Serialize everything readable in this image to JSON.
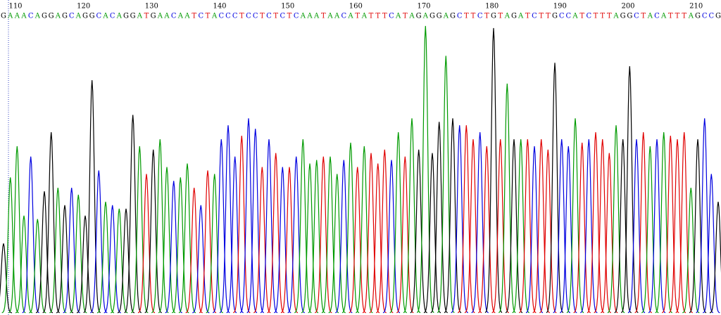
{
  "chart_data": {
    "type": "chromatogram",
    "positions": [
      110,
      120,
      130,
      140,
      150,
      160,
      170,
      180,
      190,
      200,
      210
    ],
    "bases": [
      "G",
      "A",
      "A",
      "A",
      "C",
      "A",
      "G",
      "G",
      "A",
      "G",
      "C",
      "A",
      "G",
      "G",
      "C",
      "A",
      "C",
      "A",
      "G",
      "G",
      "A",
      "T",
      "G",
      "A",
      "A",
      "C",
      "A",
      "A",
      "T",
      "C",
      "T",
      "A",
      "C",
      "C",
      "C",
      "T",
      "C",
      "C",
      "T",
      "C",
      "T",
      "C",
      "T",
      "C",
      "A",
      "A",
      "A",
      "T",
      "A",
      "A",
      "C",
      "A",
      "T",
      "A",
      "T",
      "T",
      "T",
      "C",
      "A",
      "T",
      "A",
      "G",
      "A",
      "G",
      "G",
      "A",
      "G",
      "C",
      "T",
      "T",
      "C",
      "T",
      "G",
      "T",
      "A",
      "G",
      "A",
      "T",
      "C",
      "T",
      "T",
      "G",
      "C",
      "C",
      "A",
      "T",
      "C",
      "T",
      "T",
      "T",
      "A",
      "G",
      "G",
      "C",
      "T",
      "A",
      "C",
      "A",
      "T",
      "T",
      "T",
      "A",
      "G",
      "C",
      "C",
      "G"
    ],
    "peaks": [
      100,
      195,
      240,
      140,
      225,
      135,
      175,
      260,
      180,
      155,
      180,
      170,
      140,
      335,
      205,
      160,
      155,
      150,
      150,
      285,
      240,
      200,
      235,
      250,
      210,
      190,
      195,
      215,
      180,
      155,
      205,
      200,
      250,
      270,
      225,
      255,
      280,
      265,
      210,
      250,
      230,
      210,
      210,
      225,
      250,
      215,
      220,
      225,
      225,
      200,
      220,
      245,
      210,
      240,
      230,
      215,
      235,
      220,
      260,
      225,
      280,
      235,
      413,
      230,
      275,
      370,
      280,
      270,
      270,
      250,
      260,
      240,
      410,
      250,
      330,
      250,
      250,
      250,
      240,
      250,
      235,
      360,
      250,
      240,
      280,
      245,
      250,
      260,
      250,
      230,
      270,
      250,
      355,
      250,
      260,
      240,
      250,
      260,
      255,
      250,
      260,
      180,
      250,
      280,
      200,
      160
    ],
    "ylim": [
      0,
      420
    ],
    "colors": {
      "A": "#009a00",
      "C": "#0000e0",
      "G": "#000000",
      "T": "#e00000"
    }
  }
}
